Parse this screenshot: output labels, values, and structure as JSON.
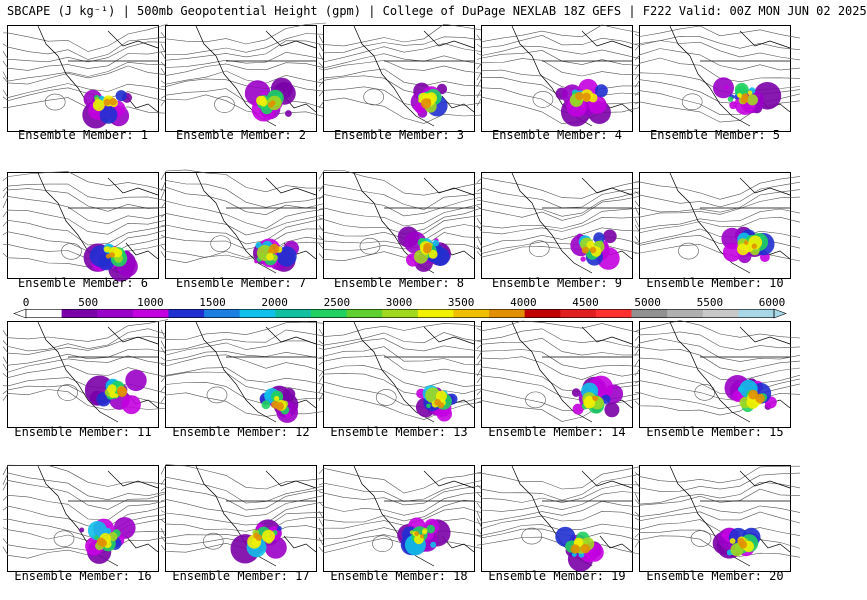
{
  "title": "SBCAPE (J kg⁻¹) | 500mb Geopotential Height (gpm) | College of DuPage NEXLAB 18Z GEFS | F222 Valid: 00Z MON JUN 02 2025",
  "colorbar": {
    "tick_labels": [
      "0",
      "500",
      "1000",
      "1500",
      "2000",
      "2500",
      "3000",
      "3500",
      "4000",
      "4500",
      "5000",
      "5500",
      "6000"
    ],
    "range": [
      0,
      6000
    ],
    "colors": [
      "#ffffff",
      "#7a00a8",
      "#9b00c8",
      "#c400e0",
      "#2030d0",
      "#1a7fe0",
      "#10c0e8",
      "#10c0a0",
      "#20d060",
      "#5fd030",
      "#a0d820",
      "#f0f000",
      "#f0c000",
      "#e09000",
      "#c00000",
      "#e02020",
      "#ff3030",
      "#909090",
      "#b0b0b0",
      "#c8c8c8",
      "#a8d8e8"
    ]
  },
  "panels": [
    {
      "label": "Ensemble Member: 1"
    },
    {
      "label": "Ensemble Member: 2"
    },
    {
      "label": "Ensemble Member: 3"
    },
    {
      "label": "Ensemble Member: 4"
    },
    {
      "label": "Ensemble Member: 5"
    },
    {
      "label": "Ensemble Member: 6"
    },
    {
      "label": "Ensemble Member: 7"
    },
    {
      "label": "Ensemble Member: 8"
    },
    {
      "label": "Ensemble Member: 9"
    },
    {
      "label": "Ensemble Member: 10"
    },
    {
      "label": "Ensemble Member: 11"
    },
    {
      "label": "Ensemble Member: 12"
    },
    {
      "label": "Ensemble Member: 13"
    },
    {
      "label": "Ensemble Member: 14"
    },
    {
      "label": "Ensemble Member: 15"
    },
    {
      "label": "Ensemble Member: 16"
    },
    {
      "label": "Ensemble Member: 17"
    },
    {
      "label": "Ensemble Member: 18"
    },
    {
      "label": "Ensemble Member: 19"
    },
    {
      "label": "Ensemble Member: 20"
    }
  ]
}
